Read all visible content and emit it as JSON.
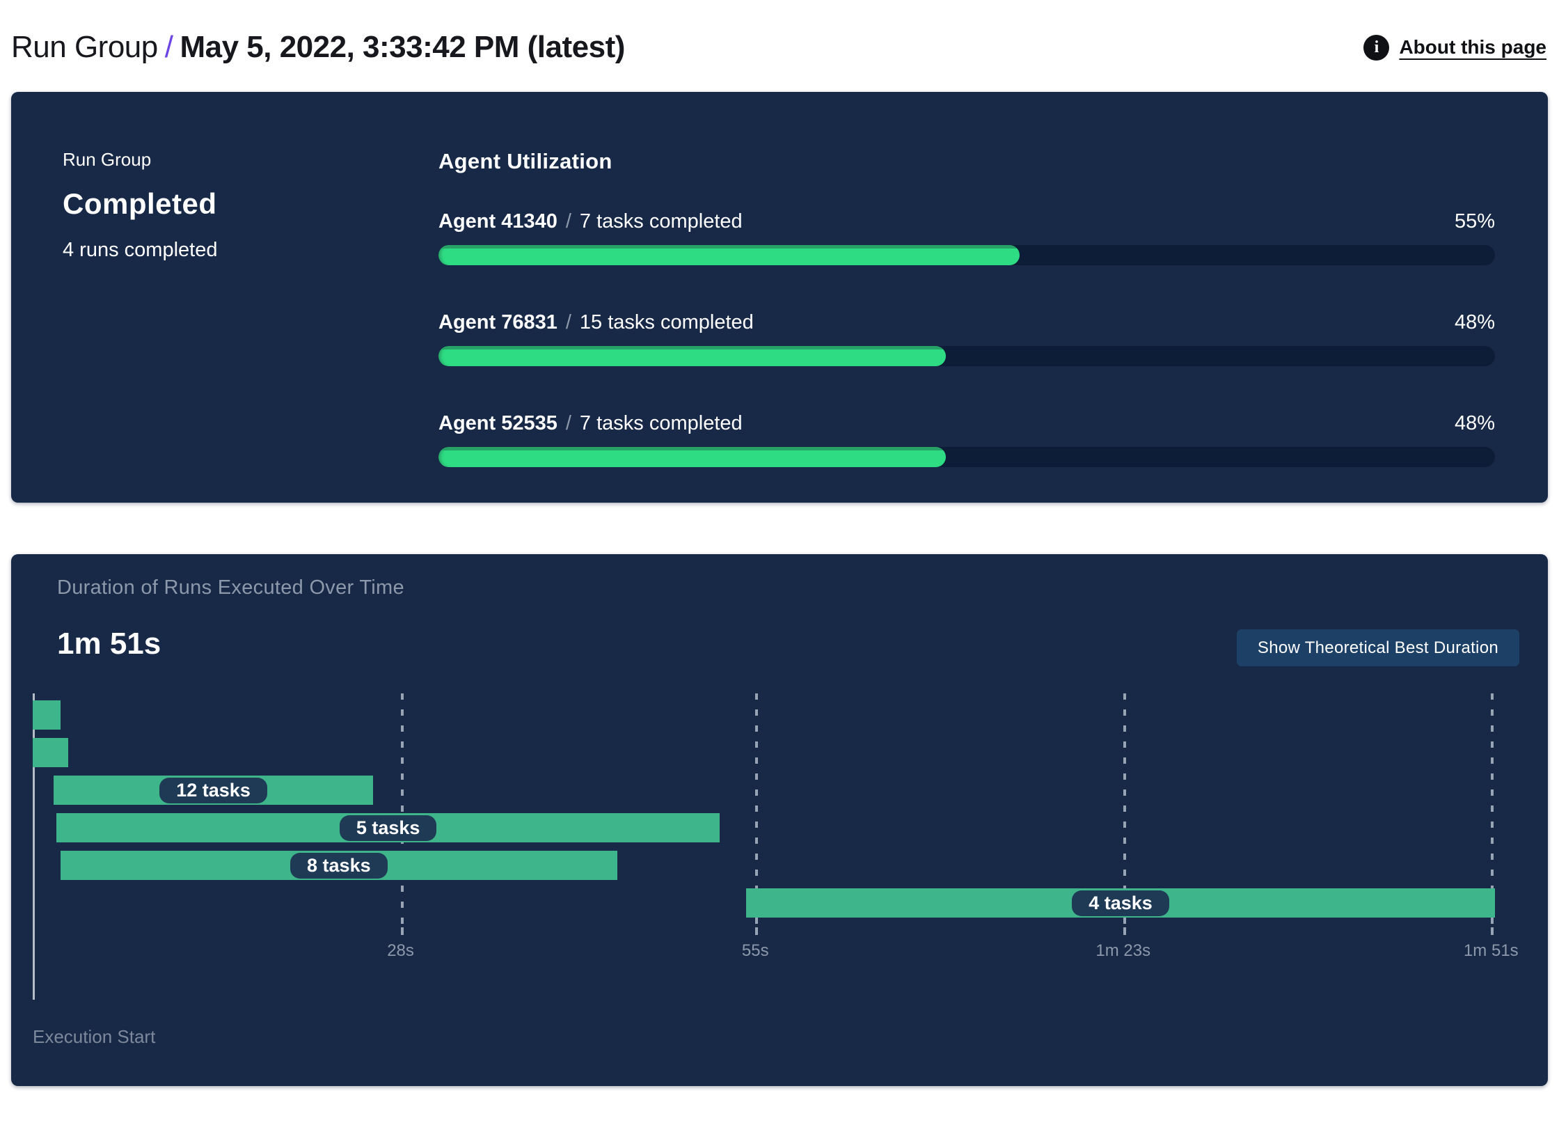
{
  "header": {
    "breadcrumb_root": "Run Group",
    "separator": "/",
    "title": "May 5, 2022, 3:33:42 PM (latest)",
    "about_link": "About this page",
    "info_icon_glyph": "i",
    "accent_color": "#6b46e5"
  },
  "summary_panel": {
    "label": "Run Group",
    "status": "Completed",
    "runs_completed": "4 runs completed",
    "agent_utilization": {
      "title": "Agent Utilization",
      "separator": "/",
      "agents": [
        {
          "name": "Agent 41340",
          "tasks": "7 tasks completed",
          "percent": 55,
          "percent_label": "55%"
        },
        {
          "name": "Agent 76831",
          "tasks": "15 tasks completed",
          "percent": 48,
          "percent_label": "48%"
        },
        {
          "name": "Agent 52535",
          "tasks": "7 tasks completed",
          "percent": 48,
          "percent_label": "48%"
        }
      ]
    }
  },
  "duration_panel": {
    "title": "Duration of Runs Executed Over Time",
    "total_duration": "1m 51s",
    "button_label": "Show Theoretical Best Duration",
    "execution_start_label": "Execution Start"
  },
  "chart_data": {
    "type": "bar",
    "subtype": "gantt-timeline",
    "title": "Duration of Runs Executed Over Time",
    "total_duration_label": "1m 51s",
    "time_axis": {
      "start_seconds": 0,
      "end_seconds": 111.3,
      "axis_label": "Execution Start",
      "grid": "dashed-vertical",
      "ticks": [
        {
          "seconds": 28,
          "label": "28s"
        },
        {
          "seconds": 55,
          "label": "55s"
        },
        {
          "seconds": 83,
          "label": "1m 23s"
        },
        {
          "seconds": 111,
          "label": "1m 51s"
        }
      ]
    },
    "bars": [
      {
        "start": 0,
        "end": 2.1,
        "label": ""
      },
      {
        "start": 0,
        "end": 2.7,
        "label": ""
      },
      {
        "start": 1.6,
        "end": 25.9,
        "label": "12 tasks"
      },
      {
        "start": 1.8,
        "end": 52.3,
        "label": "5 tasks"
      },
      {
        "start": 2.1,
        "end": 44.5,
        "label": "8 tasks"
      },
      {
        "start": 54.3,
        "end": 111.3,
        "label": "4 tasks"
      }
    ],
    "bar_color": "#3fb58c",
    "label_pill_color": "#1e3a55",
    "progress_fill_color": "#2edc83",
    "progress_track_color": "#0e1d37",
    "panel_color": "#172946"
  }
}
